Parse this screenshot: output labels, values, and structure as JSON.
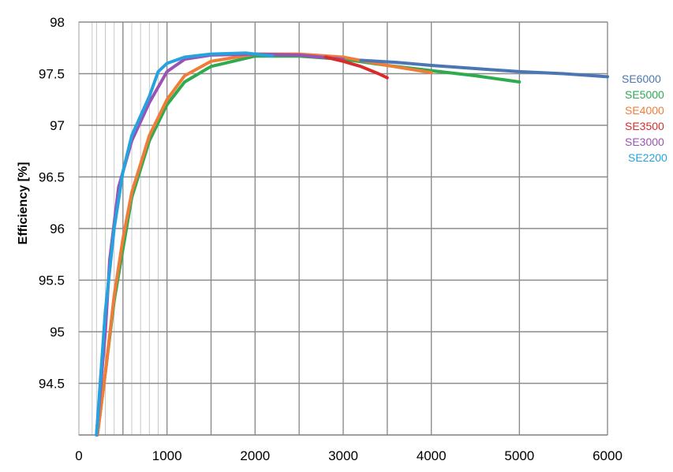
{
  "chart_data": {
    "type": "line",
    "title": "",
    "xlabel": "",
    "ylabel": "Efficiency [%]",
    "xlim": [
      0,
      6000
    ],
    "ylim": [
      94.0,
      98.0
    ],
    "x_ticks": [
      "0",
      "1000",
      "2000",
      "3000",
      "4000",
      "5000",
      "6000"
    ],
    "y_ticks": [
      "94.5",
      "95",
      "95.5",
      "96",
      "96.5",
      "97",
      "97.5",
      "98"
    ],
    "grid": true,
    "legend_position": "right",
    "series": [
      {
        "name": "SE6000",
        "color": "#4a77b4",
        "x": [
          3200,
          3600,
          4000,
          4500,
          5000,
          5500,
          6000
        ],
        "y": [
          97.63,
          97.61,
          97.58,
          97.55,
          97.52,
          97.5,
          97.47
        ]
      },
      {
        "name": "SE5000",
        "color": "#2eaa4f",
        "x": [
          210,
          300,
          400,
          500,
          600,
          800,
          1000,
          1200,
          1500,
          2000,
          2500,
          3000,
          3500,
          4000,
          4500,
          5000
        ],
        "y": [
          94.0,
          94.6,
          95.3,
          95.8,
          96.3,
          96.85,
          97.2,
          97.42,
          97.57,
          97.67,
          97.67,
          97.64,
          97.58,
          97.53,
          97.48,
          97.42
        ]
      },
      {
        "name": "SE4000",
        "color": "#f07c3a",
        "x": [
          210,
          300,
          400,
          500,
          600,
          800,
          1000,
          1200,
          1500,
          2000,
          2500,
          3000,
          3500,
          4000
        ],
        "y": [
          94.0,
          94.6,
          95.35,
          95.9,
          96.35,
          96.9,
          97.25,
          97.48,
          97.62,
          97.69,
          97.69,
          97.66,
          97.58,
          97.51
        ]
      },
      {
        "name": "SE3500",
        "color": "#d92b2b",
        "x": [
          2800,
          3000,
          3200,
          3400,
          3500
        ],
        "y": [
          97.66,
          97.62,
          97.57,
          97.5,
          97.46
        ]
      },
      {
        "name": "SE3000",
        "color": "#9b52b5",
        "x": [
          200,
          300,
          350,
          450,
          600,
          800,
          1000,
          1200,
          1500,
          2000,
          2500,
          3000
        ],
        "y": [
          94.0,
          95.0,
          95.7,
          96.4,
          96.85,
          97.22,
          97.52,
          97.64,
          97.68,
          97.69,
          97.68,
          97.64
        ]
      },
      {
        "name": "SE2200",
        "color": "#26a3de",
        "x": [
          200,
          300,
          400,
          500,
          600,
          800,
          900,
          1000,
          1200,
          1500,
          1900,
          2200
        ],
        "y": [
          94.0,
          95.2,
          96.0,
          96.55,
          96.9,
          97.28,
          97.52,
          97.6,
          97.66,
          97.69,
          97.7,
          97.67
        ]
      }
    ]
  }
}
